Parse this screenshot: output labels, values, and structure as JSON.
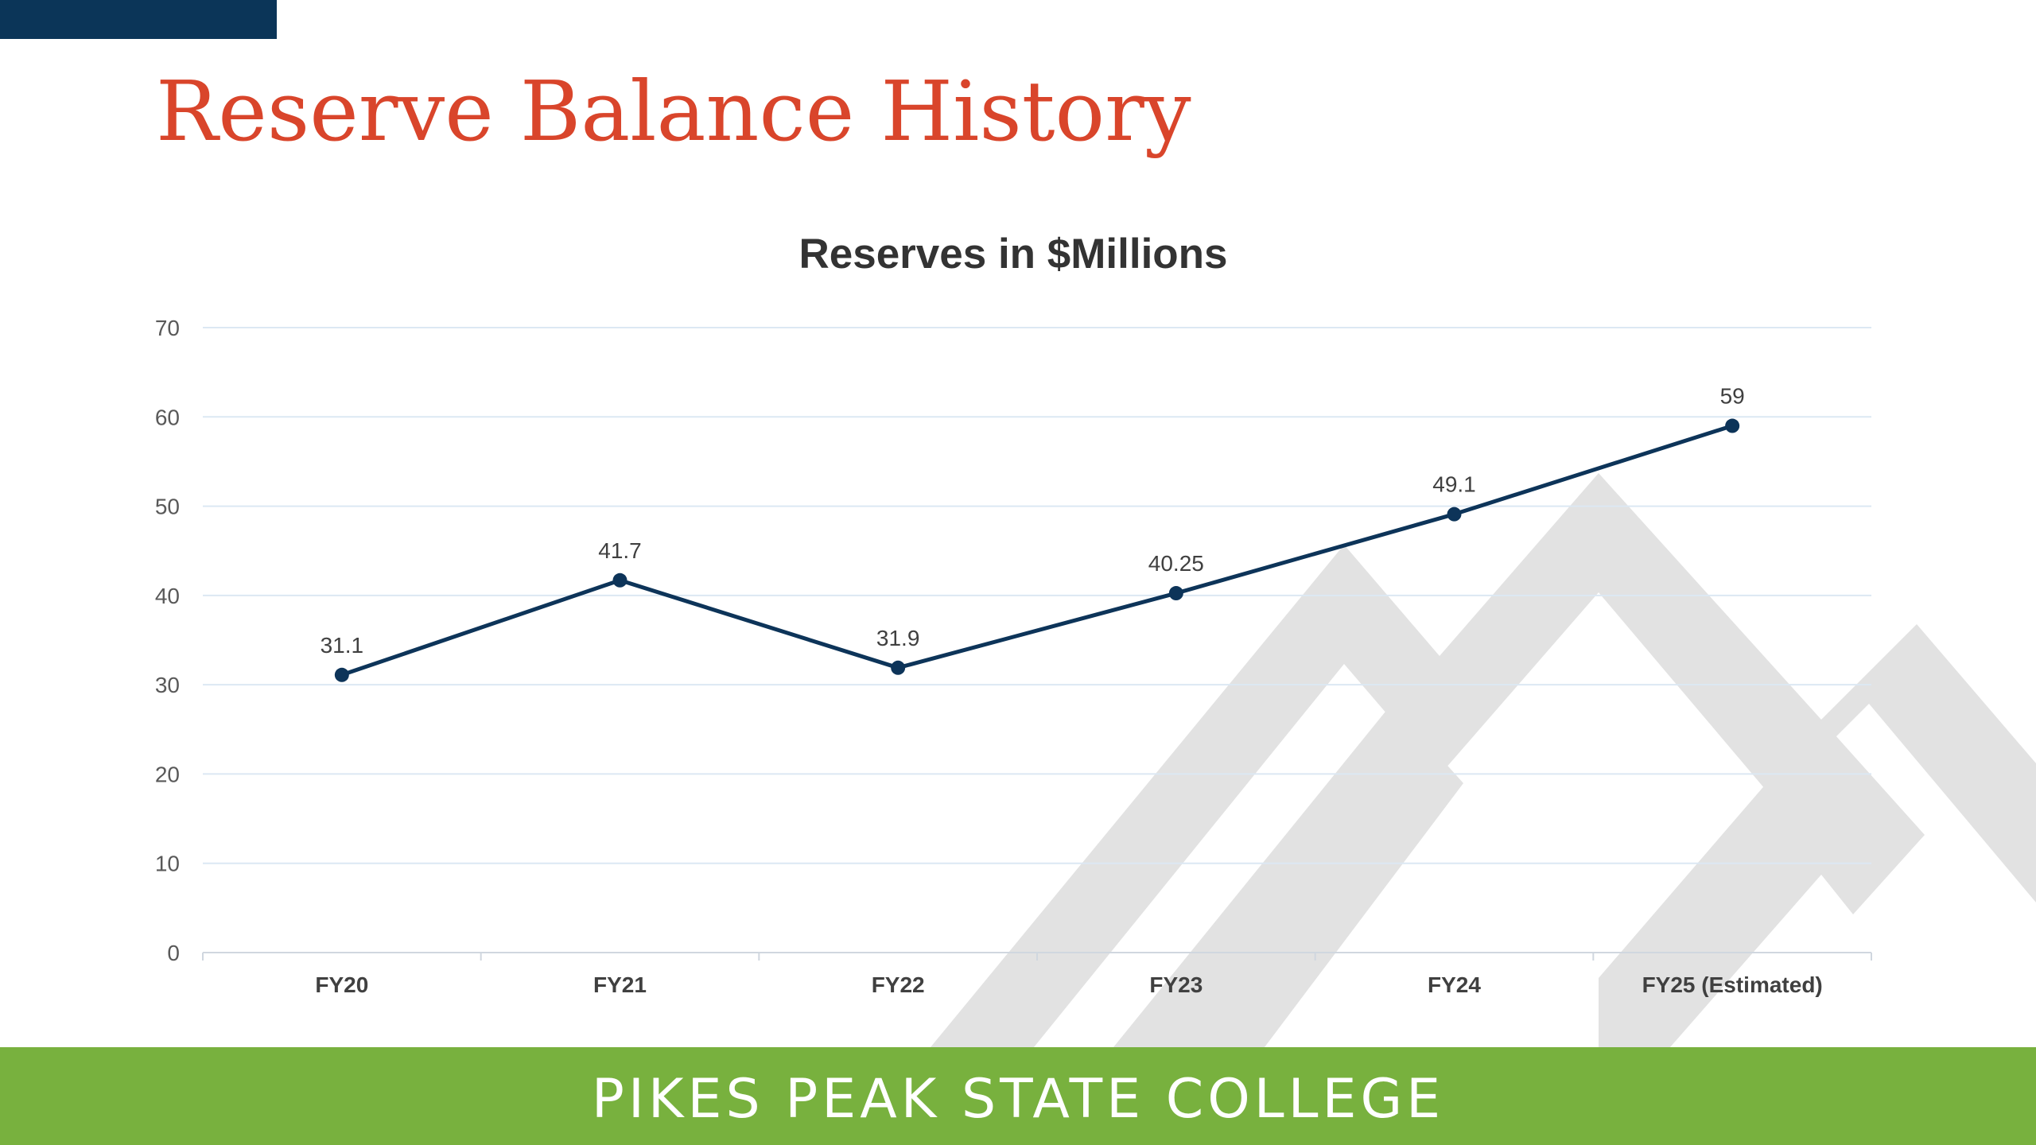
{
  "slide": {
    "title": "Reserve Balance History",
    "footer": "PIKES PEAK STATE COLLEGE"
  },
  "colors": {
    "title": "#d9452b",
    "top_bar": "#0b3558",
    "footer": "#78b13e",
    "series": "#0d3459",
    "gridline": "#dce8f3",
    "watermark": "#e2e2e2"
  },
  "chart_data": {
    "type": "line",
    "title": "Reserves in $Millions",
    "xlabel": "",
    "ylabel": "",
    "categories": [
      "FY20",
      "FY21",
      "FY22",
      "FY23",
      "FY24",
      "FY25 (Estimated)"
    ],
    "series": [
      {
        "values": [
          31.1,
          41.7,
          31.9,
          40.25,
          49.1,
          59
        ],
        "data_labels": [
          "31.1",
          "41.7",
          "31.9",
          "40.25",
          "49.1",
          "59"
        ]
      }
    ],
    "ylim": [
      0,
      70
    ],
    "yticks": [
      0,
      10,
      20,
      30,
      40,
      50,
      60,
      70
    ],
    "grid": true,
    "legend": "none",
    "markers": true
  }
}
